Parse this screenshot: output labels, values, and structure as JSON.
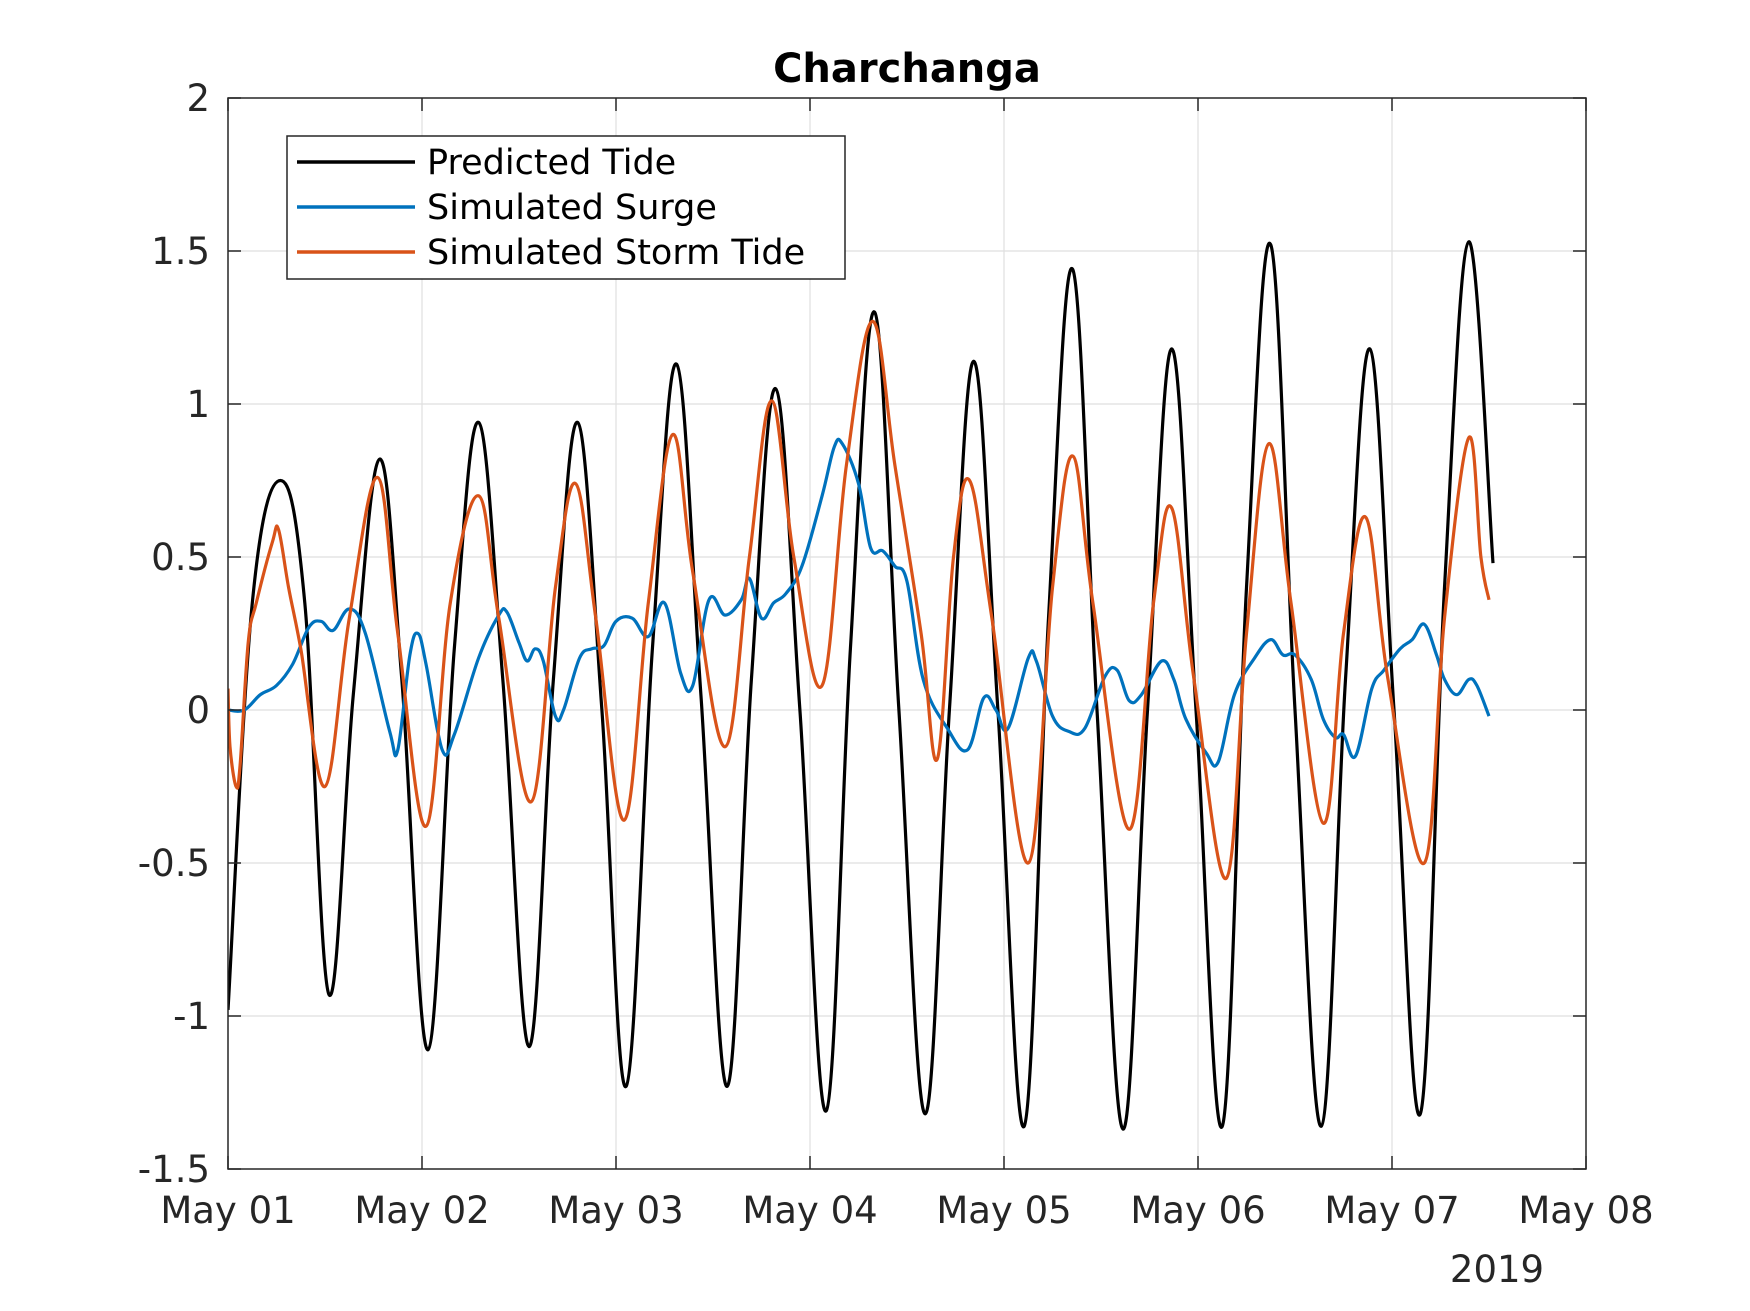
{
  "chart_data": {
    "type": "line",
    "title": "Charchanga",
    "xlabel": "",
    "ylabel": "",
    "x_tick_labels": [
      "May 01",
      "May 02",
      "May 03",
      "May 04",
      "May 05",
      "May 06",
      "May 07",
      "May 08"
    ],
    "x_secondary_label": "2019",
    "xlim": [
      "2019-05-01",
      "2019-05-08"
    ],
    "y_tick_labels": [
      "-1.5",
      "-1",
      "-0.5",
      "0",
      "0.5",
      "1",
      "1.5",
      "2"
    ],
    "y_ticks": [
      -1.5,
      -1,
      -0.5,
      0,
      0.5,
      1,
      1.5,
      2
    ],
    "ylim": [
      -1.5,
      2
    ],
    "grid": true,
    "legend_position": "top-left",
    "series": [
      {
        "name": "Predicted Tide",
        "color": "#000000",
        "points": [
          [
            "2019-05-01 00:00",
            -0.98
          ],
          [
            "2019-05-01 03:00",
            0.35
          ],
          [
            "2019-05-01 06:30",
            0.75
          ],
          [
            "2019-05-01 09:30",
            0.35
          ],
          [
            "2019-05-01 12:30",
            -0.93
          ],
          [
            "2019-05-01 15:30",
            0.05
          ],
          [
            "2019-05-01 18:45",
            0.82
          ],
          [
            "2019-05-01 21:30",
            0.1
          ],
          [
            "2019-05-02 00:45",
            -1.11
          ],
          [
            "2019-05-02 04:00",
            0.2
          ],
          [
            "2019-05-02 07:00",
            0.94
          ],
          [
            "2019-05-02 10:00",
            0.1
          ],
          [
            "2019-05-02 13:15",
            -1.1
          ],
          [
            "2019-05-02 16:15",
            0.1
          ],
          [
            "2019-05-02 19:15",
            0.94
          ],
          [
            "2019-05-02 22:15",
            0.0
          ],
          [
            "2019-05-03 01:15",
            -1.23
          ],
          [
            "2019-05-03 04:30",
            0.2
          ],
          [
            "2019-05-03 07:30",
            1.13
          ],
          [
            "2019-05-03 10:30",
            0.05
          ],
          [
            "2019-05-03 13:45",
            -1.23
          ],
          [
            "2019-05-03 16:45",
            0.1
          ],
          [
            "2019-05-03 19:45",
            1.05
          ],
          [
            "2019-05-03 22:45",
            0.0
          ],
          [
            "2019-05-04 02:00",
            -1.31
          ],
          [
            "2019-05-04 05:00",
            0.2
          ],
          [
            "2019-05-04 08:00",
            1.3
          ],
          [
            "2019-05-04 11:00",
            0.0
          ],
          [
            "2019-05-04 14:15",
            -1.32
          ],
          [
            "2019-05-04 17:15",
            0.0
          ],
          [
            "2019-05-04 20:15",
            1.14
          ],
          [
            "2019-05-04 23:15",
            0.0
          ],
          [
            "2019-05-05 02:30",
            -1.36
          ],
          [
            "2019-05-05 05:30",
            0.3
          ],
          [
            "2019-05-05 08:30",
            1.44
          ],
          [
            "2019-05-05 11:30",
            0.0
          ],
          [
            "2019-05-05 14:45",
            -1.37
          ],
          [
            "2019-05-05 17:45",
            0.0
          ],
          [
            "2019-05-05 20:45",
            1.18
          ],
          [
            "2019-05-05 23:45",
            0.0
          ],
          [
            "2019-05-06 03:00",
            -1.36
          ],
          [
            "2019-05-06 06:00",
            0.4
          ],
          [
            "2019-05-06 09:00",
            1.52
          ],
          [
            "2019-05-06 12:00",
            0.0
          ],
          [
            "2019-05-06 15:15",
            -1.36
          ],
          [
            "2019-05-06 18:15",
            0.1
          ],
          [
            "2019-05-06 21:15",
            1.18
          ],
          [
            "2019-05-07 00:15",
            0.0
          ],
          [
            "2019-05-07 03:30",
            -1.32
          ],
          [
            "2019-05-07 06:30",
            0.4
          ],
          [
            "2019-05-07 09:30",
            1.53
          ],
          [
            "2019-05-07 12:30",
            0.48
          ]
        ]
      },
      {
        "name": "Simulated Surge",
        "color": "#0072BD",
        "points": [
          [
            "2019-05-01 00:00",
            0.0
          ],
          [
            "2019-05-01 02:00",
            0.0
          ],
          [
            "2019-05-01 04:00",
            0.05
          ],
          [
            "2019-05-01 06:00",
            0.08
          ],
          [
            "2019-05-01 08:00",
            0.15
          ],
          [
            "2019-05-01 10:00",
            0.27
          ],
          [
            "2019-05-01 11:30",
            0.29
          ],
          [
            "2019-05-01 13:00",
            0.26
          ],
          [
            "2019-05-01 15:00",
            0.33
          ],
          [
            "2019-05-01 17:00",
            0.25
          ],
          [
            "2019-05-01 20:00",
            -0.07
          ],
          [
            "2019-05-01 21:00",
            -0.13
          ],
          [
            "2019-05-01 22:30",
            0.18
          ],
          [
            "2019-05-01 23:30",
            0.25
          ],
          [
            "2019-05-02 00:30",
            0.15
          ],
          [
            "2019-05-02 02:30",
            -0.13
          ],
          [
            "2019-05-02 04:00",
            -0.08
          ],
          [
            "2019-05-02 07:00",
            0.17
          ],
          [
            "2019-05-02 09:30",
            0.31
          ],
          [
            "2019-05-02 10:30",
            0.32
          ],
          [
            "2019-05-02 12:00",
            0.22
          ],
          [
            "2019-05-02 13:00",
            0.16
          ],
          [
            "2019-05-02 14:00",
            0.2
          ],
          [
            "2019-05-02 15:00",
            0.16
          ],
          [
            "2019-05-02 16:30",
            -0.02
          ],
          [
            "2019-05-02 17:30",
            0.0
          ],
          [
            "2019-05-02 19:30",
            0.17
          ],
          [
            "2019-05-02 21:00",
            0.2
          ],
          [
            "2019-05-02 22:30",
            0.21
          ],
          [
            "2019-05-03 00:00",
            0.29
          ],
          [
            "2019-05-03 02:00",
            0.3
          ],
          [
            "2019-05-03 04:00",
            0.24
          ],
          [
            "2019-05-03 06:00",
            0.35
          ],
          [
            "2019-05-03 08:00",
            0.12
          ],
          [
            "2019-05-03 09:30",
            0.08
          ],
          [
            "2019-05-03 11:30",
            0.36
          ],
          [
            "2019-05-03 13:30",
            0.31
          ],
          [
            "2019-05-03 15:30",
            0.36
          ],
          [
            "2019-05-03 16:30",
            0.43
          ],
          [
            "2019-05-03 18:00",
            0.3
          ],
          [
            "2019-05-03 19:30",
            0.35
          ],
          [
            "2019-05-03 21:00",
            0.38
          ],
          [
            "2019-05-03 23:00",
            0.47
          ],
          [
            "2019-05-04 01:30",
            0.7
          ],
          [
            "2019-05-04 03:00",
            0.86
          ],
          [
            "2019-05-04 04:00",
            0.87
          ],
          [
            "2019-05-04 06:00",
            0.74
          ],
          [
            "2019-05-04 07:30",
            0.53
          ],
          [
            "2019-05-04 09:00",
            0.52
          ],
          [
            "2019-05-04 10:30",
            0.47
          ],
          [
            "2019-05-04 12:00",
            0.42
          ],
          [
            "2019-05-04 14:00",
            0.1
          ],
          [
            "2019-05-04 17:00",
            -0.06
          ],
          [
            "2019-05-04 19:30",
            -0.13
          ],
          [
            "2019-05-04 21:30",
            0.04
          ],
          [
            "2019-05-04 23:00",
            0.0
          ],
          [
            "2019-05-05 00:30",
            -0.06
          ],
          [
            "2019-05-05 03:00",
            0.17
          ],
          [
            "2019-05-05 04:00",
            0.16
          ],
          [
            "2019-05-05 06:00",
            -0.02
          ],
          [
            "2019-05-05 08:00",
            -0.07
          ],
          [
            "2019-05-05 10:00",
            -0.06
          ],
          [
            "2019-05-05 12:30",
            0.11
          ],
          [
            "2019-05-05 14:00",
            0.13
          ],
          [
            "2019-05-05 15:30",
            0.03
          ],
          [
            "2019-05-05 17:00",
            0.05
          ],
          [
            "2019-05-05 19:30",
            0.16
          ],
          [
            "2019-05-05 21:00",
            0.1
          ],
          [
            "2019-05-05 22:30",
            -0.03
          ],
          [
            "2019-05-06 01:00",
            -0.14
          ],
          [
            "2019-05-06 02:30",
            -0.17
          ],
          [
            "2019-05-06 04:30",
            0.05
          ],
          [
            "2019-05-06 07:00",
            0.17
          ],
          [
            "2019-05-06 09:00",
            0.23
          ],
          [
            "2019-05-06 10:30",
            0.18
          ],
          [
            "2019-05-06 12:00",
            0.18
          ],
          [
            "2019-05-06 14:00",
            0.1
          ],
          [
            "2019-05-06 15:30",
            -0.03
          ],
          [
            "2019-05-06 17:00",
            -0.09
          ],
          [
            "2019-05-06 18:00",
            -0.08
          ],
          [
            "2019-05-06 19:30",
            -0.15
          ],
          [
            "2019-05-06 21:30",
            0.07
          ],
          [
            "2019-05-06 23:00",
            0.13
          ],
          [
            "2019-05-07 01:00",
            0.2
          ],
          [
            "2019-05-07 02:30",
            0.23
          ],
          [
            "2019-05-07 04:00",
            0.28
          ],
          [
            "2019-05-07 05:30",
            0.18
          ],
          [
            "2019-05-07 06:30",
            0.1
          ],
          [
            "2019-05-07 08:00",
            0.05
          ],
          [
            "2019-05-07 09:30",
            0.1
          ],
          [
            "2019-05-07 10:30",
            0.08
          ],
          [
            "2019-05-07 12:00",
            -0.02
          ]
        ]
      },
      {
        "name": "Simulated Storm Tide",
        "color": "#D95319",
        "points": [
          [
            "2019-05-01 00:00",
            0.07
          ],
          [
            "2019-05-01 00:15",
            -0.12
          ],
          [
            "2019-05-01 01:00",
            -0.25
          ],
          [
            "2019-05-01 01:30",
            -0.18
          ],
          [
            "2019-05-01 02:30",
            0.22
          ],
          [
            "2019-05-01 03:30",
            0.35
          ],
          [
            "2019-05-01 05:30",
            0.55
          ],
          [
            "2019-05-01 06:15",
            0.59
          ],
          [
            "2019-05-01 07:30",
            0.4
          ],
          [
            "2019-05-01 09:00",
            0.2
          ],
          [
            "2019-05-01 12:00",
            -0.25
          ],
          [
            "2019-05-01 15:00",
            0.3
          ],
          [
            "2019-05-01 18:30",
            0.76
          ],
          [
            "2019-05-01 21:00",
            0.25
          ],
          [
            "2019-05-02 00:30",
            -0.38
          ],
          [
            "2019-05-02 03:30",
            0.35
          ],
          [
            "2019-05-02 07:00",
            0.7
          ],
          [
            "2019-05-02 09:30",
            0.3
          ],
          [
            "2019-05-02 13:30",
            -0.3
          ],
          [
            "2019-05-02 16:30",
            0.4
          ],
          [
            "2019-05-02 19:00",
            0.74
          ],
          [
            "2019-05-02 21:30",
            0.3
          ],
          [
            "2019-05-03 01:00",
            -0.36
          ],
          [
            "2019-05-03 04:00",
            0.35
          ],
          [
            "2019-05-03 07:00",
            0.9
          ],
          [
            "2019-05-03 09:30",
            0.45
          ],
          [
            "2019-05-03 13:30",
            -0.12
          ],
          [
            "2019-05-03 16:30",
            0.5
          ],
          [
            "2019-05-03 19:15",
            1.01
          ],
          [
            "2019-05-03 22:00",
            0.5
          ],
          [
            "2019-05-04 01:30",
            0.08
          ],
          [
            "2019-05-04 04:30",
            0.8
          ],
          [
            "2019-05-04 07:45",
            1.27
          ],
          [
            "2019-05-04 10:30",
            0.8
          ],
          [
            "2019-05-04 13:45",
            0.25
          ],
          [
            "2019-05-04 15:45",
            -0.16
          ],
          [
            "2019-05-04 17:45",
            0.5
          ],
          [
            "2019-05-04 19:45",
            0.75
          ],
          [
            "2019-05-04 22:30",
            0.3
          ],
          [
            "2019-05-05 03:00",
            -0.5
          ],
          [
            "2019-05-05 06:00",
            0.4
          ],
          [
            "2019-05-05 08:30",
            0.83
          ],
          [
            "2019-05-05 11:00",
            0.35
          ],
          [
            "2019-05-05 15:30",
            -0.39
          ],
          [
            "2019-05-05 18:30",
            0.35
          ],
          [
            "2019-05-05 20:45",
            0.66
          ],
          [
            "2019-05-05 23:30",
            0.1
          ],
          [
            "2019-05-06 03:30",
            -0.55
          ],
          [
            "2019-05-06 06:00",
            0.25
          ],
          [
            "2019-05-06 08:45",
            0.87
          ],
          [
            "2019-05-06 11:30",
            0.35
          ],
          [
            "2019-05-06 15:30",
            -0.37
          ],
          [
            "2019-05-06 18:00",
            0.25
          ],
          [
            "2019-05-06 20:45",
            0.63
          ],
          [
            "2019-05-06 23:30",
            0.1
          ],
          [
            "2019-05-07 04:00",
            -0.5
          ],
          [
            "2019-05-07 06:30",
            0.3
          ],
          [
            "2019-05-07 09:30",
            0.89
          ],
          [
            "2019-05-07 11:00",
            0.5
          ],
          [
            "2019-05-07 12:00",
            0.36
          ]
        ]
      }
    ]
  }
}
